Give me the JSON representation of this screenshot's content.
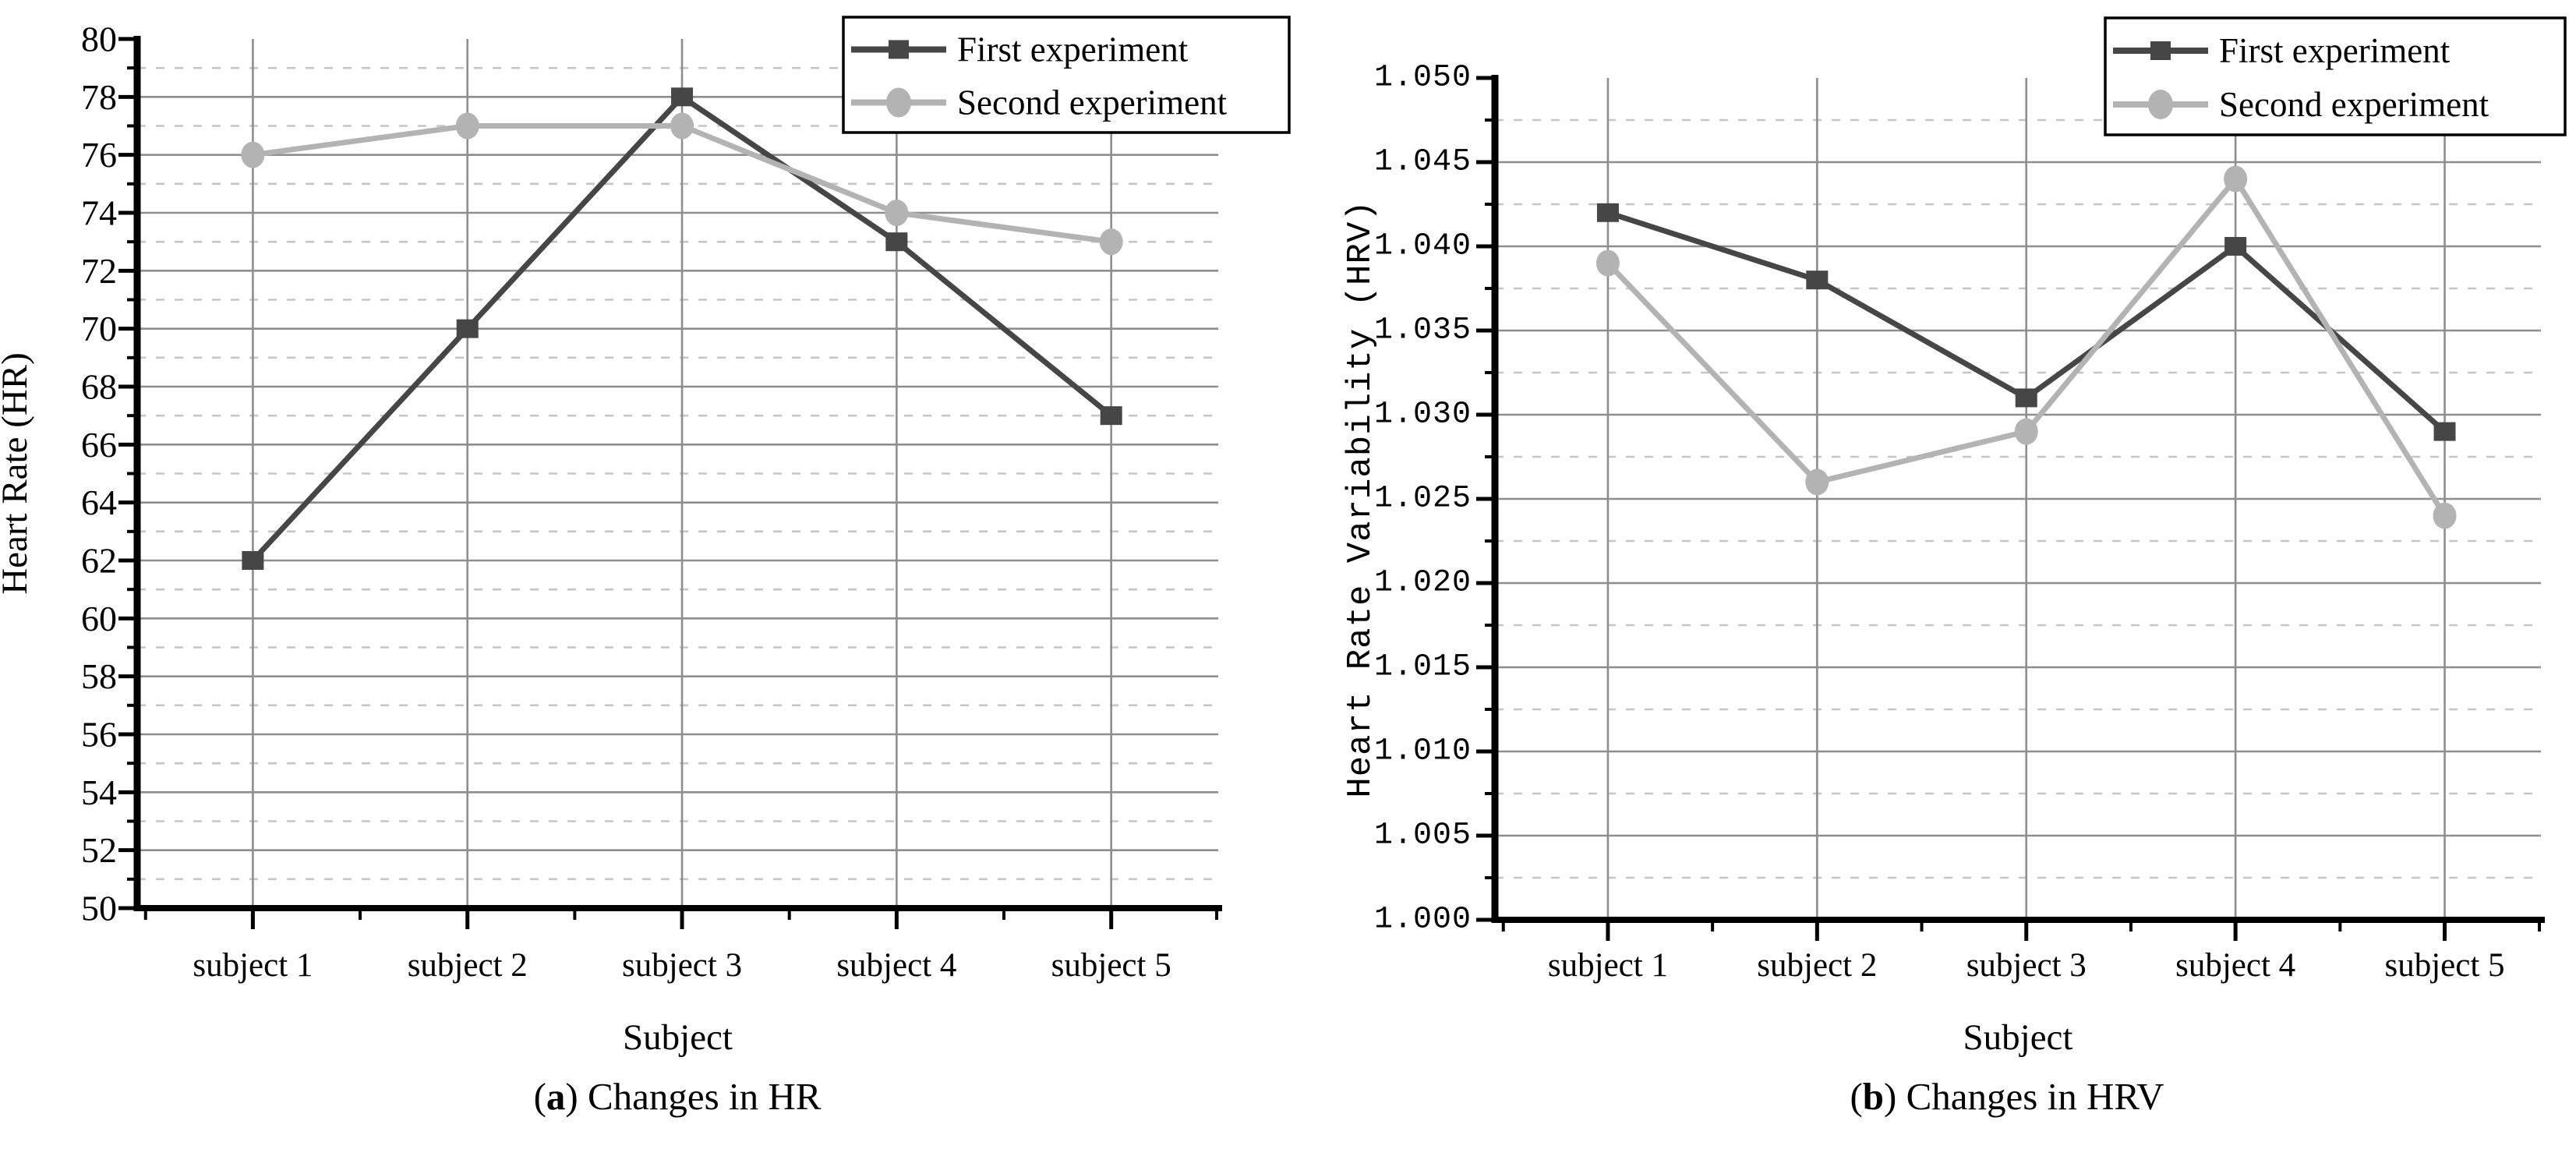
{
  "figure": {
    "background": "#ffffff",
    "panels": [
      {
        "caption": {
          "open": "(",
          "label": "a",
          "close": ")",
          "text": " Changes in HR"
        }
      },
      {
        "caption": {
          "open": "(",
          "label": "b",
          "close": ")",
          "text": " Changes in HRV"
        }
      }
    ]
  },
  "colors": {
    "axis": "#000000",
    "major_grid": "#8e8e8e",
    "minor_grid": "#c6c6c6",
    "legend_border": "#000000",
    "legend_fill": "#ffffff",
    "first_experiment": "#464646",
    "second_experiment": "#b3b3b3",
    "text": "#000000"
  },
  "chart_data": [
    {
      "id": "hr",
      "type": "line",
      "title": "(a) Changes in HR",
      "xlabel": "Subject",
      "ylabel": "Heart Rate (HR)",
      "categories": [
        "subject 1",
        "subject 2",
        "subject 3",
        "subject 4",
        "subject 5"
      ],
      "series": [
        {
          "name": "First experiment",
          "marker": "square",
          "color": "#464646",
          "values": [
            62,
            70,
            78,
            73,
            67
          ]
        },
        {
          "name": "Second experiment",
          "marker": "circle",
          "color": "#b3b3b3",
          "values": [
            76,
            77,
            77,
            74,
            73
          ]
        }
      ],
      "ylim": [
        50,
        80
      ],
      "y_major_step": 2,
      "y_minor_step": 1,
      "y_tick_decimals": 0,
      "y_tick_labels": [
        "50",
        "52",
        "54",
        "56",
        "58",
        "60",
        "62",
        "64",
        "66",
        "68",
        "70",
        "72",
        "74",
        "76",
        "78",
        "80"
      ],
      "legend_position": "top-right",
      "grid": {
        "major_solid": true,
        "minor_dashed": true,
        "vertical_at_categories": true
      }
    },
    {
      "id": "hrv",
      "type": "line",
      "title": "(b) Changes in HRV",
      "xlabel": "Subject",
      "ylabel": "Heart Rate Variability (HRV)",
      "categories": [
        "subject 1",
        "subject 2",
        "subject 3",
        "subject 4",
        "subject 5"
      ],
      "series": [
        {
          "name": "First experiment",
          "marker": "square",
          "color": "#464646",
          "values": [
            1.042,
            1.038,
            1.031,
            1.04,
            1.029
          ]
        },
        {
          "name": "Second experiment",
          "marker": "circle",
          "color": "#b3b3b3",
          "values": [
            1.039,
            1.026,
            1.029,
            1.044,
            1.024
          ]
        }
      ],
      "ylim": [
        1.0,
        1.05
      ],
      "y_major_step": 0.005,
      "y_minor_step": 0.0025,
      "y_tick_decimals": 3,
      "y_tick_labels": [
        "1.000",
        "1.005",
        "1.010",
        "1.015",
        "1.020",
        "1.025",
        "1.030",
        "1.035",
        "1.040",
        "1.045",
        "1.050"
      ],
      "legend_position": "top-right",
      "grid": {
        "major_solid": true,
        "minor_dashed": true,
        "vertical_at_categories": true
      }
    }
  ]
}
